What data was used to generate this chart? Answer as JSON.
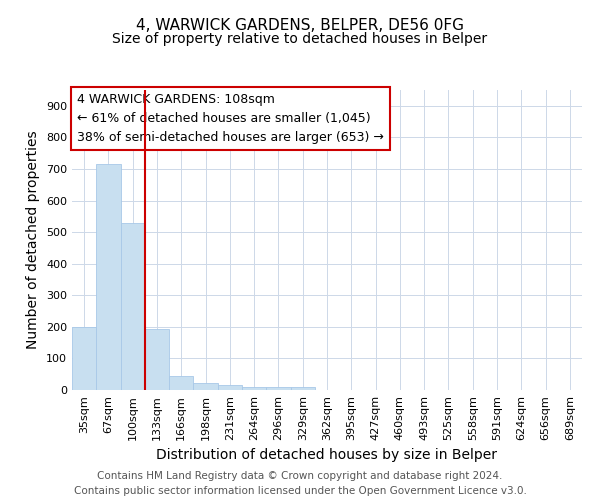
{
  "title": "4, WARWICK GARDENS, BELPER, DE56 0FG",
  "subtitle": "Size of property relative to detached houses in Belper",
  "xlabel": "Distribution of detached houses by size in Belper",
  "ylabel": "Number of detached properties",
  "categories": [
    "35sqm",
    "67sqm",
    "100sqm",
    "133sqm",
    "166sqm",
    "198sqm",
    "231sqm",
    "264sqm",
    "296sqm",
    "329sqm",
    "362sqm",
    "395sqm",
    "427sqm",
    "460sqm",
    "493sqm",
    "525sqm",
    "558sqm",
    "591sqm",
    "624sqm",
    "656sqm",
    "689sqm"
  ],
  "values": [
    200,
    715,
    530,
    192,
    45,
    22,
    15,
    10,
    8,
    8,
    0,
    0,
    0,
    0,
    0,
    0,
    0,
    0,
    0,
    0,
    0
  ],
  "bar_color": "#c8dff0",
  "bar_edge_color": "#a8c8e8",
  "red_line_x": 2.5,
  "ylim": [
    0,
    950
  ],
  "yticks": [
    0,
    100,
    200,
    300,
    400,
    500,
    600,
    700,
    800,
    900
  ],
  "annotation_text": "4 WARWICK GARDENS: 108sqm\n← 61% of detached houses are smaller (1,045)\n38% of semi-detached houses are larger (653) →",
  "annotation_box_color": "#ffffff",
  "annotation_box_edge_color": "#cc0000",
  "footnote1": "Contains HM Land Registry data © Crown copyright and database right 2024.",
  "footnote2": "Contains public sector information licensed under the Open Government Licence v3.0.",
  "background_color": "#ffffff",
  "grid_color": "#cdd8e8",
  "title_fontsize": 11,
  "subtitle_fontsize": 10,
  "axis_label_fontsize": 10,
  "tick_fontsize": 8,
  "annotation_fontsize": 9,
  "footnote_fontsize": 7.5
}
